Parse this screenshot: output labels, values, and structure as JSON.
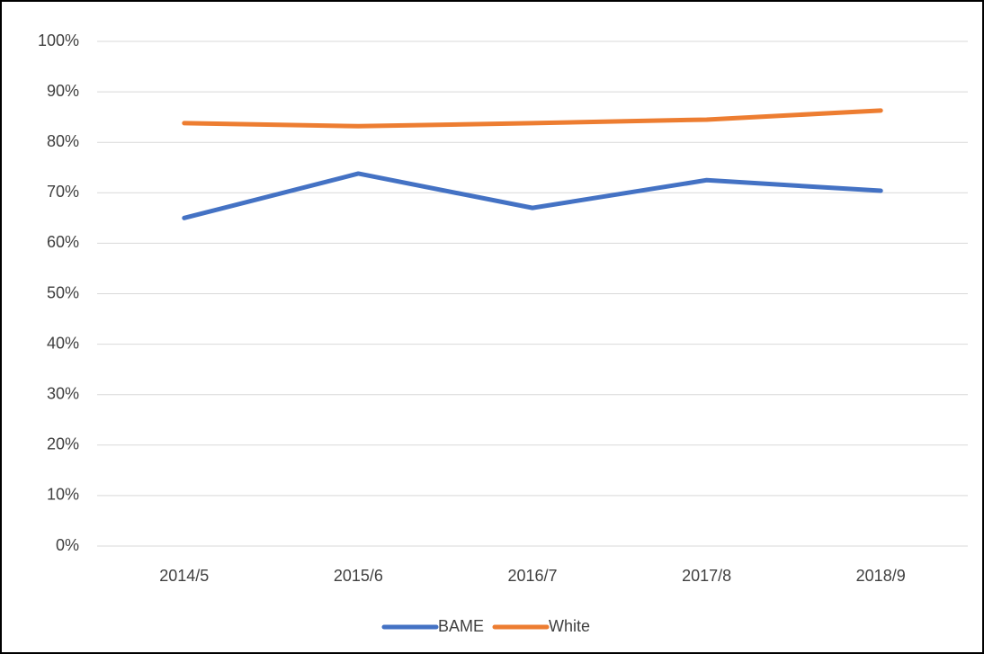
{
  "chart_data": {
    "type": "line",
    "categories": [
      "2014/5",
      "2015/6",
      "2016/7",
      "2017/8",
      "2018/9"
    ],
    "series": [
      {
        "name": "BAME",
        "color": "#4472c4",
        "values": [
          65.0,
          73.8,
          67.0,
          72.5,
          70.4
        ]
      },
      {
        "name": "White",
        "color": "#ed7d31",
        "values": [
          83.8,
          83.2,
          83.8,
          84.5,
          86.3
        ]
      }
    ],
    "ylim": [
      0,
      100
    ],
    "yticks": [
      {
        "value": 0,
        "label": "0%"
      },
      {
        "value": 10,
        "label": "10%"
      },
      {
        "value": 20,
        "label": "20%"
      },
      {
        "value": 30,
        "label": "30%"
      },
      {
        "value": 40,
        "label": "40%"
      },
      {
        "value": 50,
        "label": "50%"
      },
      {
        "value": 60,
        "label": "60%"
      },
      {
        "value": 70,
        "label": "70%"
      },
      {
        "value": 80,
        "label": "80%"
      },
      {
        "value": 90,
        "label": "90%"
      },
      {
        "value": 100,
        "label": "100%"
      }
    ],
    "grid": true,
    "legend": "bottom"
  }
}
